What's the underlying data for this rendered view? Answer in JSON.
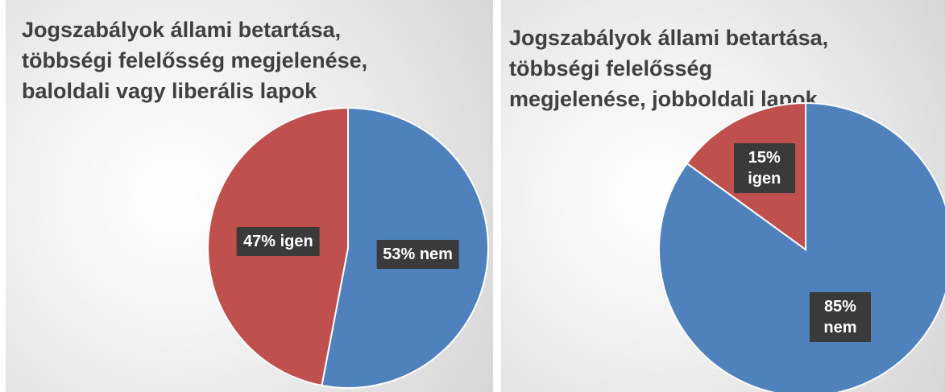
{
  "chart_data": [
    {
      "type": "pie",
      "title": "Jogszabályok állami betartása, többségi felelősség megjelenése, baloldali vagy liberális lapok",
      "categories": [
        "nem",
        "igen"
      ],
      "values": [
        53,
        47
      ],
      "value_labels": [
        "53% nem",
        "47% igen"
      ],
      "colors": [
        "#4f81bd",
        "#c0504d"
      ]
    },
    {
      "type": "pie",
      "title": "Jogszabályok állami betartása, többségi felelősség megjelenése, jobboldali lapok",
      "categories": [
        "nem",
        "igen"
      ],
      "values": [
        85,
        15
      ],
      "value_labels": [
        "85% nem",
        "15% igen"
      ],
      "colors": [
        "#4f81bd",
        "#c0504d"
      ]
    }
  ]
}
